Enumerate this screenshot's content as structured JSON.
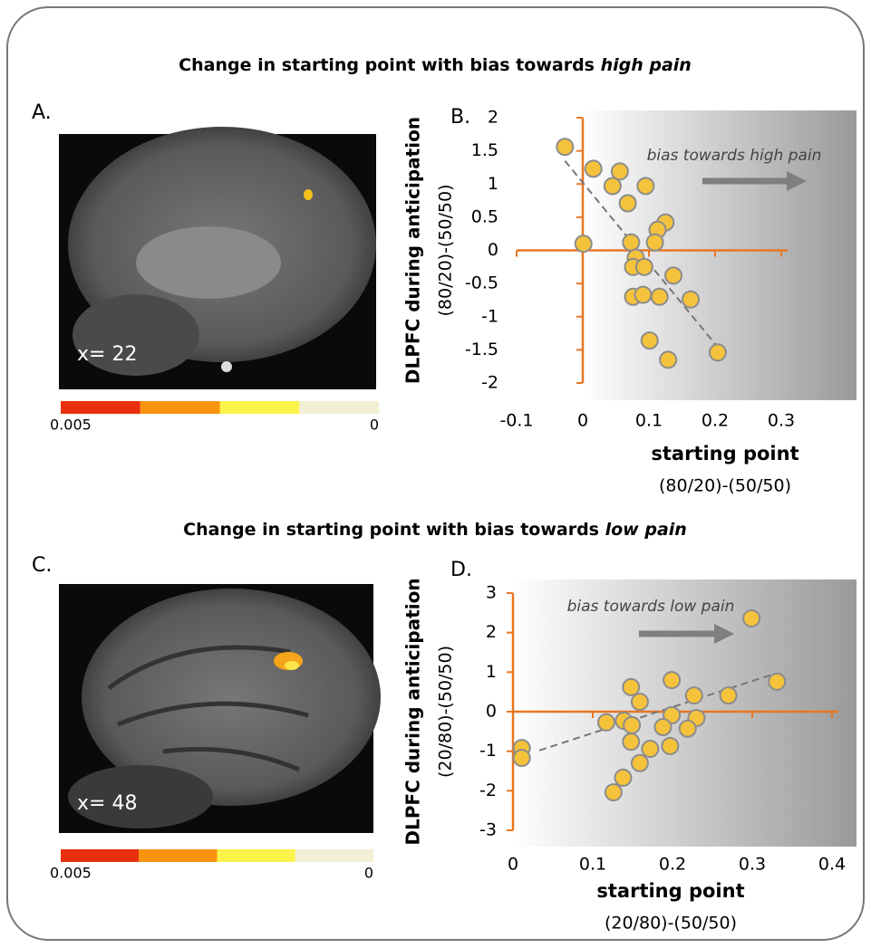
{
  "sections": [
    {
      "title": "Change in starting point with bias towards ",
      "title_emphasis": "high pain"
    },
    {
      "title": "Change in starting point with bias towards ",
      "title_emphasis": "low pain"
    }
  ],
  "panels": [
    {
      "label": "A.",
      "slice": "x= 22",
      "colorbar_labels": [
        0.005,
        0
      ],
      "colorbar_colors": [
        "#e8300e",
        "#f7930f",
        "#fbf24a",
        "#f3efd6"
      ]
    },
    {
      "label": "C.",
      "slice": "x= 48",
      "colorbar_labels": [
        0.005,
        0
      ],
      "colorbar_colors": [
        "#e8300e",
        "#f7930f",
        "#fbf24a",
        "#f3efd6"
      ]
    }
  ],
  "chart_data": [
    {
      "type": "scatter",
      "label": "B.",
      "annotation": "bias towards high pain",
      "ylabel": "DLPFC during anticipation",
      "ylabel_sub": "(80/20)-(50/50)",
      "xlabel": "starting point",
      "xlabel_sub": "(80/20)-(50/50)",
      "color": "#f5c33b",
      "axis_color": "#e87722",
      "x": [
        -0.027,
        0.016,
        0.056,
        0.045,
        0.095,
        0.068,
        0.125,
        0.113,
        0.109,
        0.001,
        0.073,
        0.08,
        0.076,
        0.093,
        0.137,
        0.076,
        0.091,
        0.116,
        0.163,
        0.101,
        0.129,
        0.204
      ],
      "y": [
        1.56,
        1.23,
        1.19,
        0.97,
        0.97,
        0.71,
        0.42,
        0.31,
        0.12,
        0.1,
        0.12,
        -0.11,
        -0.25,
        -0.25,
        -0.38,
        -0.7,
        -0.67,
        -0.7,
        -0.74,
        -1.36,
        -1.65,
        -1.54
      ],
      "trendline": {
        "x": [
          -0.027,
          0.204
        ],
        "y": [
          1.35,
          -1.46
        ]
      },
      "xlim": [
        -0.1,
        0.3
      ],
      "ylim": [
        -2,
        2
      ],
      "xticks": [
        -0.1,
        0,
        0.1,
        0.2,
        0.3
      ],
      "yticks": [
        2,
        1.5,
        1,
        0.5,
        0,
        -0.5,
        -1,
        -1.5,
        -2
      ]
    },
    {
      "type": "scatter",
      "label": "D.",
      "annotation": "bias towards low pain",
      "ylabel": "DLPFC during anticipation",
      "ylabel_sub": "(20/80)-(50/50)",
      "xlabel": "starting point",
      "xlabel_sub": "(20/80)-(50/50)",
      "color": "#f5c33b",
      "axis_color": "#e87722",
      "x": [
        0.299,
        0.331,
        0.199,
        0.148,
        0.159,
        0.227,
        0.27,
        0.199,
        0.23,
        0.117,
        0.139,
        0.149,
        0.188,
        0.219,
        0.148,
        0.197,
        0.172,
        0.011,
        0.011,
        0.159,
        0.138,
        0.126
      ],
      "y": [
        2.36,
        0.76,
        0.8,
        0.62,
        0.25,
        0.41,
        0.41,
        -0.09,
        -0.16,
        -0.27,
        -0.23,
        -0.34,
        -0.39,
        -0.43,
        -0.76,
        -0.87,
        -0.94,
        -0.92,
        -1.17,
        -1.3,
        -1.67,
        -2.04
      ],
      "trendline": {
        "x": [
          0.033,
          0.328
        ],
        "y": [
          -0.98,
          0.96
        ]
      },
      "xlim": [
        0,
        0.4
      ],
      "ylim": [
        -3,
        3
      ],
      "xticks": [
        0,
        0.1,
        0.2,
        0.3,
        0.4
      ],
      "yticks": [
        3,
        2,
        1,
        0,
        -1,
        -2,
        -3
      ]
    }
  ]
}
